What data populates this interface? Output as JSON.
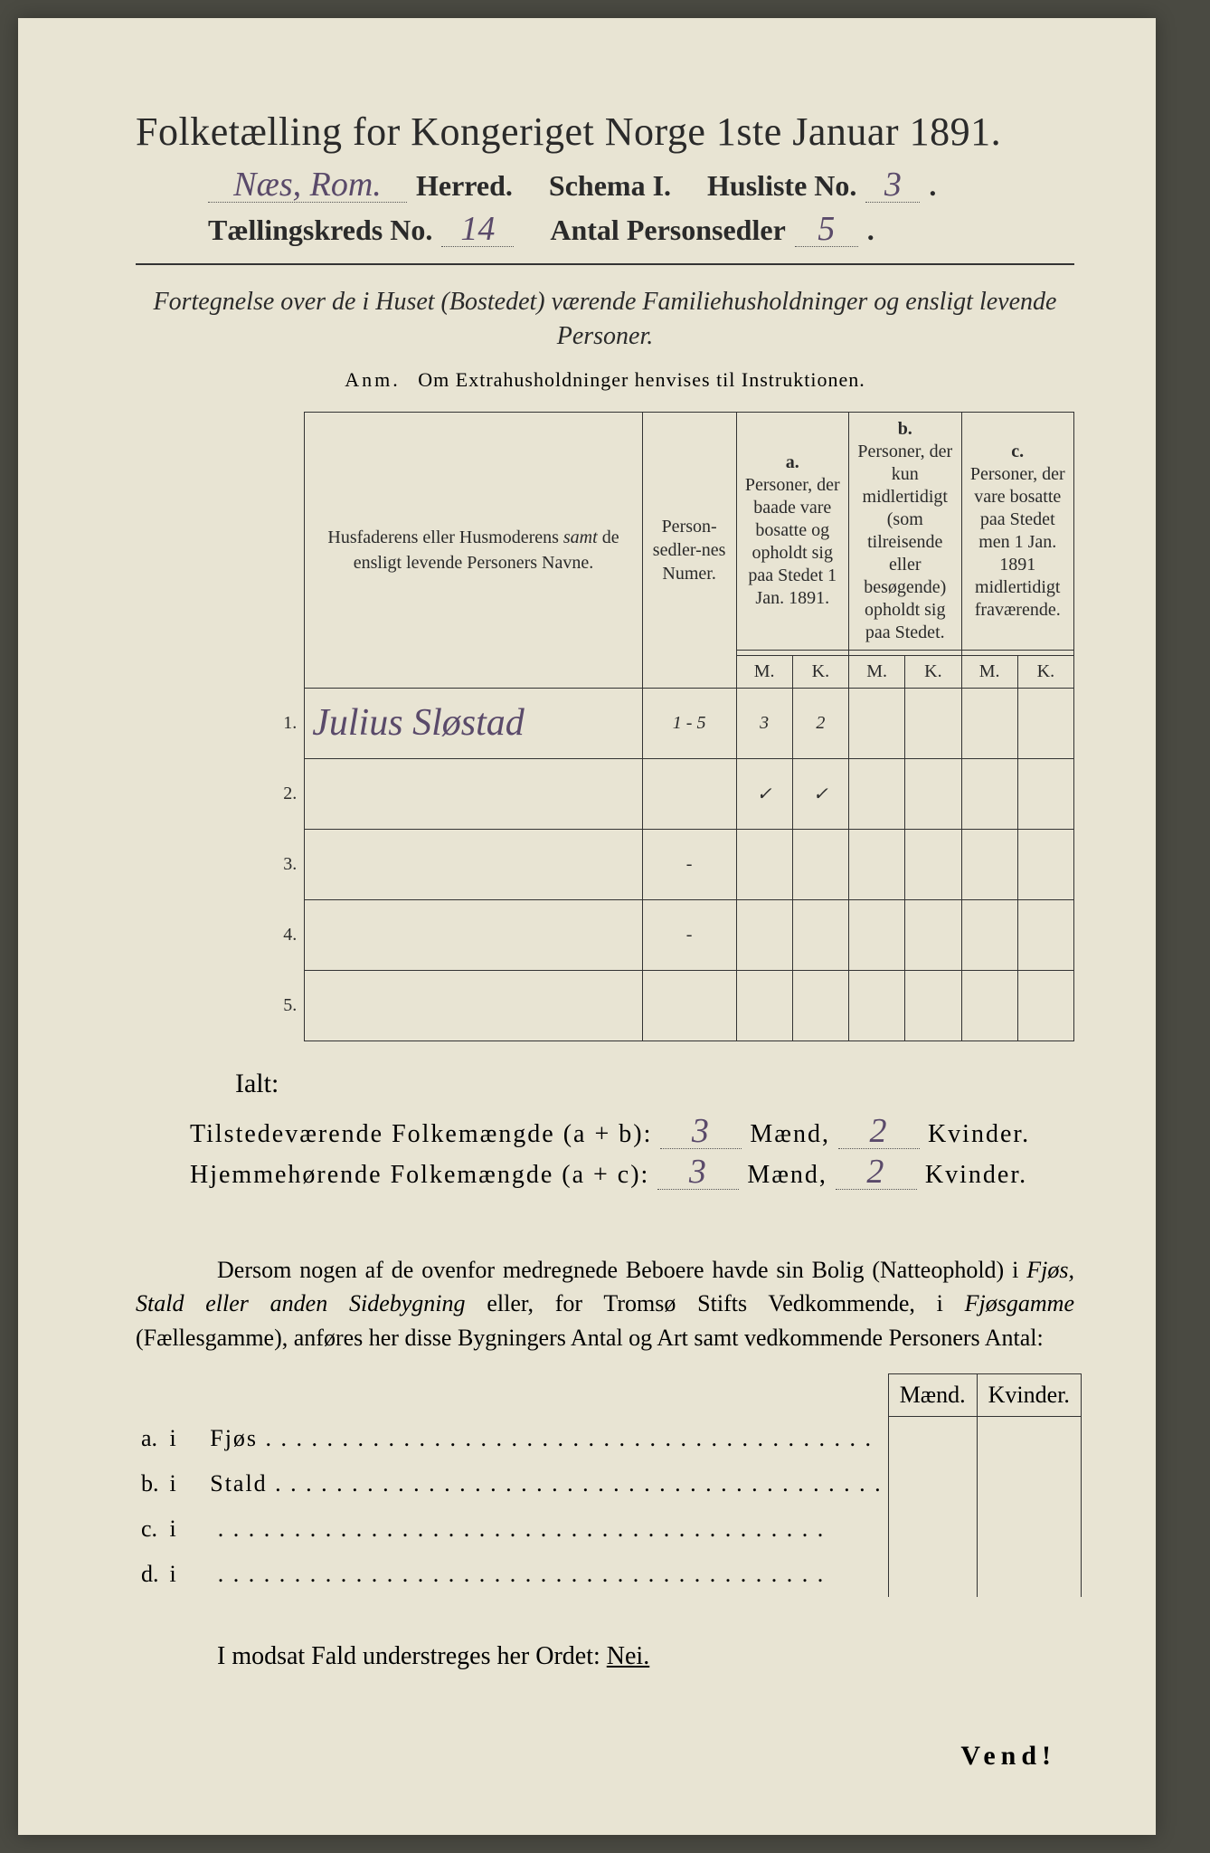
{
  "header": {
    "title": "Folketælling for Kongeriget Norge 1ste Januar 1891.",
    "location_hand": "Næs, Rom.",
    "herred": "Herred.",
    "schema": "Schema I.",
    "husliste_label": "Husliste No.",
    "husliste_no": "3",
    "kreds_label": "Tællingskreds No.",
    "kreds_no": "14",
    "antal_label": "Antal Personsedler",
    "antal_no": "5"
  },
  "fortegnelse": "Fortegnelse over de i Huset (Bostedet) værende Familiehusholdninger og ensligt levende Personer.",
  "anm": {
    "prefix": "Anm.",
    "text": "Om Extrahusholdninger henvises til Instruktionen."
  },
  "table": {
    "col_navne": "Husfaderens eller Husmoderens samt de ensligt levende Personers Navne.",
    "col_numer": "Person-sedler-nes Numer.",
    "grp_a_lbl": "a.",
    "grp_a": "Personer, der baade vare bosatte og opholdt sig paa Stedet 1 Jan. 1891.",
    "grp_b_lbl": "b.",
    "grp_b": "Personer, der kun midlertidigt (som tilreisende eller besøgende) opholdt sig paa Stedet.",
    "grp_c_lbl": "c.",
    "grp_c": "Personer, der vare bosatte paa Stedet men 1 Jan. 1891 midlertidigt fraværende.",
    "m": "M.",
    "k": "K.",
    "rows": [
      {
        "n": "1.",
        "name": "Julius Sløstad",
        "numer": "1 - 5",
        "a_m": "3",
        "a_k": "2",
        "b_m": "",
        "b_k": "",
        "c_m": "",
        "c_k": ""
      },
      {
        "n": "2.",
        "name": "",
        "numer": "",
        "a_m": "✓",
        "a_k": "✓",
        "b_m": "",
        "b_k": "",
        "c_m": "",
        "c_k": ""
      },
      {
        "n": "3.",
        "name": "",
        "numer": "-",
        "a_m": "",
        "a_k": "",
        "b_m": "",
        "b_k": "",
        "c_m": "",
        "c_k": ""
      },
      {
        "n": "4.",
        "name": "",
        "numer": "-",
        "a_m": "",
        "a_k": "",
        "b_m": "",
        "b_k": "",
        "c_m": "",
        "c_k": ""
      },
      {
        "n": "5.",
        "name": "",
        "numer": "",
        "a_m": "",
        "a_k": "",
        "b_m": "",
        "b_k": "",
        "c_m": "",
        "c_k": ""
      }
    ]
  },
  "ialt": "Ialt:",
  "totals": {
    "line1_label": "Tilstedeværende Folkemængde (a + b):",
    "line2_label": "Hjemmehørende Folkemængde (a + c):",
    "maend": "Mænd,",
    "kvinder": "Kvinder.",
    "l1_m": "3",
    "l1_k": "2",
    "l2_m": "3",
    "l2_k": "2"
  },
  "dersom": "Dersom nogen af de ovenfor medregnede Beboere havde sin Bolig (Natteophold) i Fjøs, Stald eller anden Sidebygning eller, for Tromsø Stifts Vedkommende, i Fjøsgamme (Fællesgamme), anføres her disse Bygningers Antal og Art samt vedkommende Personers Antal:",
  "byg": {
    "maend": "Mænd.",
    "kvinder": "Kvinder.",
    "rows": [
      {
        "a": "a.",
        "i": "i",
        "label": "Fjøs"
      },
      {
        "a": "b.",
        "i": "i",
        "label": "Stald"
      },
      {
        "a": "c.",
        "i": "i",
        "label": ""
      },
      {
        "a": "d.",
        "i": "i",
        "label": ""
      }
    ]
  },
  "nei": {
    "text": "I modsat Fald understreges her Ordet:",
    "word": "Nei."
  },
  "vend": "Vend!",
  "colors": {
    "paper": "#e8e4d3",
    "ink": "#2a2a2a",
    "handwriting": "#5a4a6a",
    "rule": "#333333",
    "background": "#4a4a42"
  }
}
